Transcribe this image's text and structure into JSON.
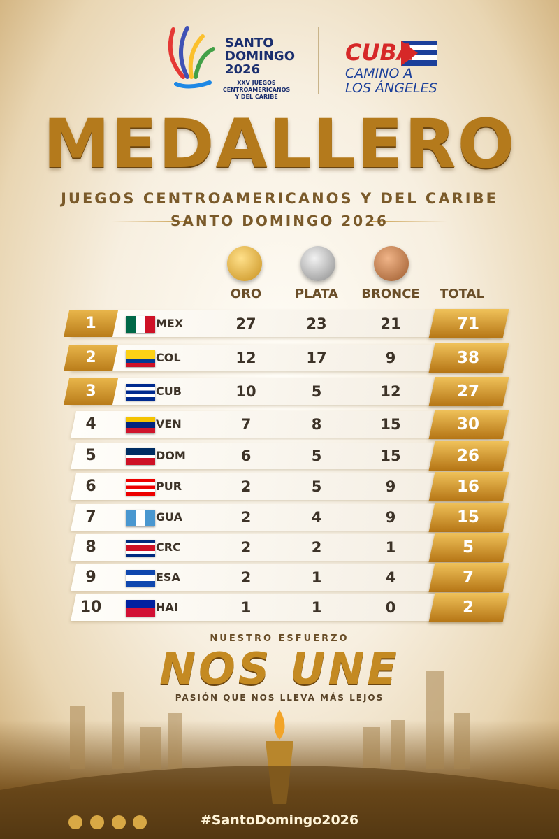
{
  "header": {
    "games_logo": {
      "line1": "SANTO",
      "line2": "DOMINGO",
      "line3": "2026",
      "caption1": "XXV JUEGOS CENTROAMERICANOS",
      "caption2": "Y DEL CARIBE"
    },
    "cuba_logo": {
      "name": "CUBA",
      "tagline1": "CAMINO A",
      "tagline2": "LOS ÁNGELES"
    }
  },
  "title": "MEDALLERO",
  "subtitle": "JUEGOS CENTROAMERICANOS Y DEL CARIBE",
  "subtitle2": "SANTO DOMINGO 2026",
  "table": {
    "headers": [
      "ORO",
      "PLATA",
      "BRONCE",
      "TOTAL"
    ],
    "rows": [
      [
        1,
        "MEX",
        27,
        23,
        21,
        71
      ],
      [
        2,
        "COL",
        12,
        17,
        9,
        38
      ],
      [
        3,
        "CUB",
        10,
        5,
        12,
        27
      ],
      [
        4,
        "VEN",
        7,
        8,
        15,
        30
      ],
      [
        5,
        "DOM",
        6,
        5,
        15,
        26
      ],
      [
        6,
        "PUR",
        2,
        5,
        9,
        16
      ],
      [
        7,
        "GUA",
        2,
        4,
        9,
        15
      ],
      [
        8,
        "CRC",
        2,
        2,
        1,
        5
      ],
      [
        9,
        "ESA",
        2,
        1,
        4,
        7
      ],
      [
        10,
        "HAI",
        1,
        1,
        0,
        2
      ]
    ]
  },
  "footer": {
    "kicker": "NUESTRO ESFUERZO",
    "slogan": "NOS UNE",
    "tagline": "PASIÓN QUE NOS LLEVA MÁS LEJOS",
    "hashtag": "#SantoDomingo2026"
  }
}
